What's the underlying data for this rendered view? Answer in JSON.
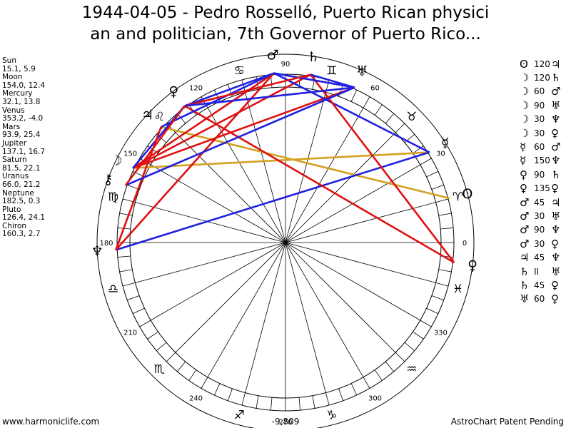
{
  "title_line1": "1944-04-05 - Pedro Rosselló, Puerto Rican physici",
  "title_line2": "an and politician, 7th Governor of Puerto Rico...",
  "planets": [
    {
      "name": "Sun",
      "values": "15.1, 5.9"
    },
    {
      "name": "Moon",
      "values": "154.0, 12.4"
    },
    {
      "name": "Mercury",
      "values": "32.1, 13.8"
    },
    {
      "name": "Venus",
      "values": "353.2, -4.0"
    },
    {
      "name": "Mars",
      "values": "93.9, 25.4"
    },
    {
      "name": "Jupiter",
      "values": "137.1, 16.7"
    },
    {
      "name": "Saturn",
      "values": "81.5, 22.1"
    },
    {
      "name": "Uranus",
      "values": "66.0, 21.2"
    },
    {
      "name": "Neptune",
      "values": "182.5, 0.3"
    },
    {
      "name": "Pluto",
      "values": "126.4, 24.1"
    },
    {
      "name": "Chiron",
      "values": "160.3, 2.7"
    }
  ],
  "aspects": [
    {
      "g1": "ʘ",
      "angle": "120",
      "g2": "♃"
    },
    {
      "g1": "☽",
      "angle": "120",
      "g2": "♄"
    },
    {
      "g1": "☽",
      "angle": "60",
      "g2": "♂"
    },
    {
      "g1": "☽",
      "angle": "90",
      "g2": "♅"
    },
    {
      "g1": "☽",
      "angle": "30",
      "g2": "♆"
    },
    {
      "g1": "☽",
      "angle": "30",
      "g2": "♀"
    },
    {
      "g1": "☿",
      "angle": "60",
      "g2": "♂"
    },
    {
      "g1": "☿",
      "angle": "150",
      "g2": "♆"
    },
    {
      "g1": "♀",
      "angle": "90",
      "g2": "♄"
    },
    {
      "g1": "♀",
      "angle": "135",
      "g2": "♀"
    },
    {
      "g1": "♂",
      "angle": "45",
      "g2": "♃"
    },
    {
      "g1": "♂",
      "angle": "30",
      "g2": "♅"
    },
    {
      "g1": "♂",
      "angle": "90",
      "g2": "♆"
    },
    {
      "g1": "♂",
      "angle": "30",
      "g2": "♀"
    },
    {
      "g1": "♃",
      "angle": "45",
      "g2": "♆"
    },
    {
      "g1": "♄",
      "angle": "II",
      "g2": "♅"
    },
    {
      "g1": "♄",
      "angle": "45",
      "g2": "♀"
    },
    {
      "g1": "♅",
      "angle": "60",
      "g2": "♀"
    }
  ],
  "wheel": {
    "degree_labels": [
      "0",
      "30",
      "60",
      "90",
      "120",
      "150",
      "180",
      "210",
      "240",
      "270",
      "300",
      "330"
    ],
    "sign_glyphs": [
      "♈",
      "♉",
      "♊",
      "♋",
      "♌",
      "♍",
      "♎",
      "♏",
      "♐",
      "♑",
      "♒",
      "♓"
    ],
    "planet_glyphs": [
      {
        "glyph": "ʘ",
        "longitude": 15.1
      },
      {
        "glyph": "☽",
        "longitude": 154.0
      },
      {
        "glyph": "☿",
        "longitude": 32.1
      },
      {
        "glyph": "♀",
        "longitude": 353.2
      },
      {
        "glyph": "♂",
        "longitude": 93.9
      },
      {
        "glyph": "♃",
        "longitude": 137.1
      },
      {
        "glyph": "♄",
        "longitude": 81.5
      },
      {
        "glyph": "♅",
        "longitude": 66.0
      },
      {
        "glyph": "♆",
        "longitude": 182.5
      },
      {
        "glyph": "♀",
        "longitude": 126.4
      },
      {
        "glyph": "⚷",
        "longitude": 160.3
      }
    ],
    "aspect_lines": [
      {
        "from": 15.1,
        "to": 137.1,
        "color": "#d4a020"
      },
      {
        "from": 154.0,
        "to": 32.1,
        "color": "#d4a020"
      },
      {
        "from": 154.0,
        "to": 81.5,
        "color": "#e01010"
      },
      {
        "from": 154.0,
        "to": 93.9,
        "color": "#e01010"
      },
      {
        "from": 154.0,
        "to": 66.0,
        "color": "#e01010"
      },
      {
        "from": 154.0,
        "to": 126.4,
        "color": "#2020e0"
      },
      {
        "from": 32.1,
        "to": 93.9,
        "color": "#2020e0"
      },
      {
        "from": 32.1,
        "to": 182.5,
        "color": "#2020e0"
      },
      {
        "from": 353.2,
        "to": 81.5,
        "color": "#e01010"
      },
      {
        "from": 353.2,
        "to": 126.4,
        "color": "#e01010"
      },
      {
        "from": 93.9,
        "to": 137.1,
        "color": "#2020e0"
      },
      {
        "from": 93.9,
        "to": 66.0,
        "color": "#2020e0"
      },
      {
        "from": 93.9,
        "to": 182.5,
        "color": "#e01010"
      },
      {
        "from": 93.9,
        "to": 126.4,
        "color": "#2020e0"
      },
      {
        "from": 137.1,
        "to": 182.5,
        "color": "#e01010"
      },
      {
        "from": 81.5,
        "to": 66.0,
        "color": "#2020e0"
      },
      {
        "from": 81.5,
        "to": 126.4,
        "color": "#e01010"
      },
      {
        "from": 66.0,
        "to": 126.4,
        "color": "#2020e0"
      },
      {
        "from": 66.0,
        "to": 160.3,
        "color": "#2020e0"
      },
      {
        "from": 160.3,
        "to": 126.4,
        "color": "#e01010"
      }
    ]
  },
  "footer_left": "www.harmoniclife.com",
  "footer_center": "-9,809",
  "footer_right": "AstroChart Patent Pending"
}
